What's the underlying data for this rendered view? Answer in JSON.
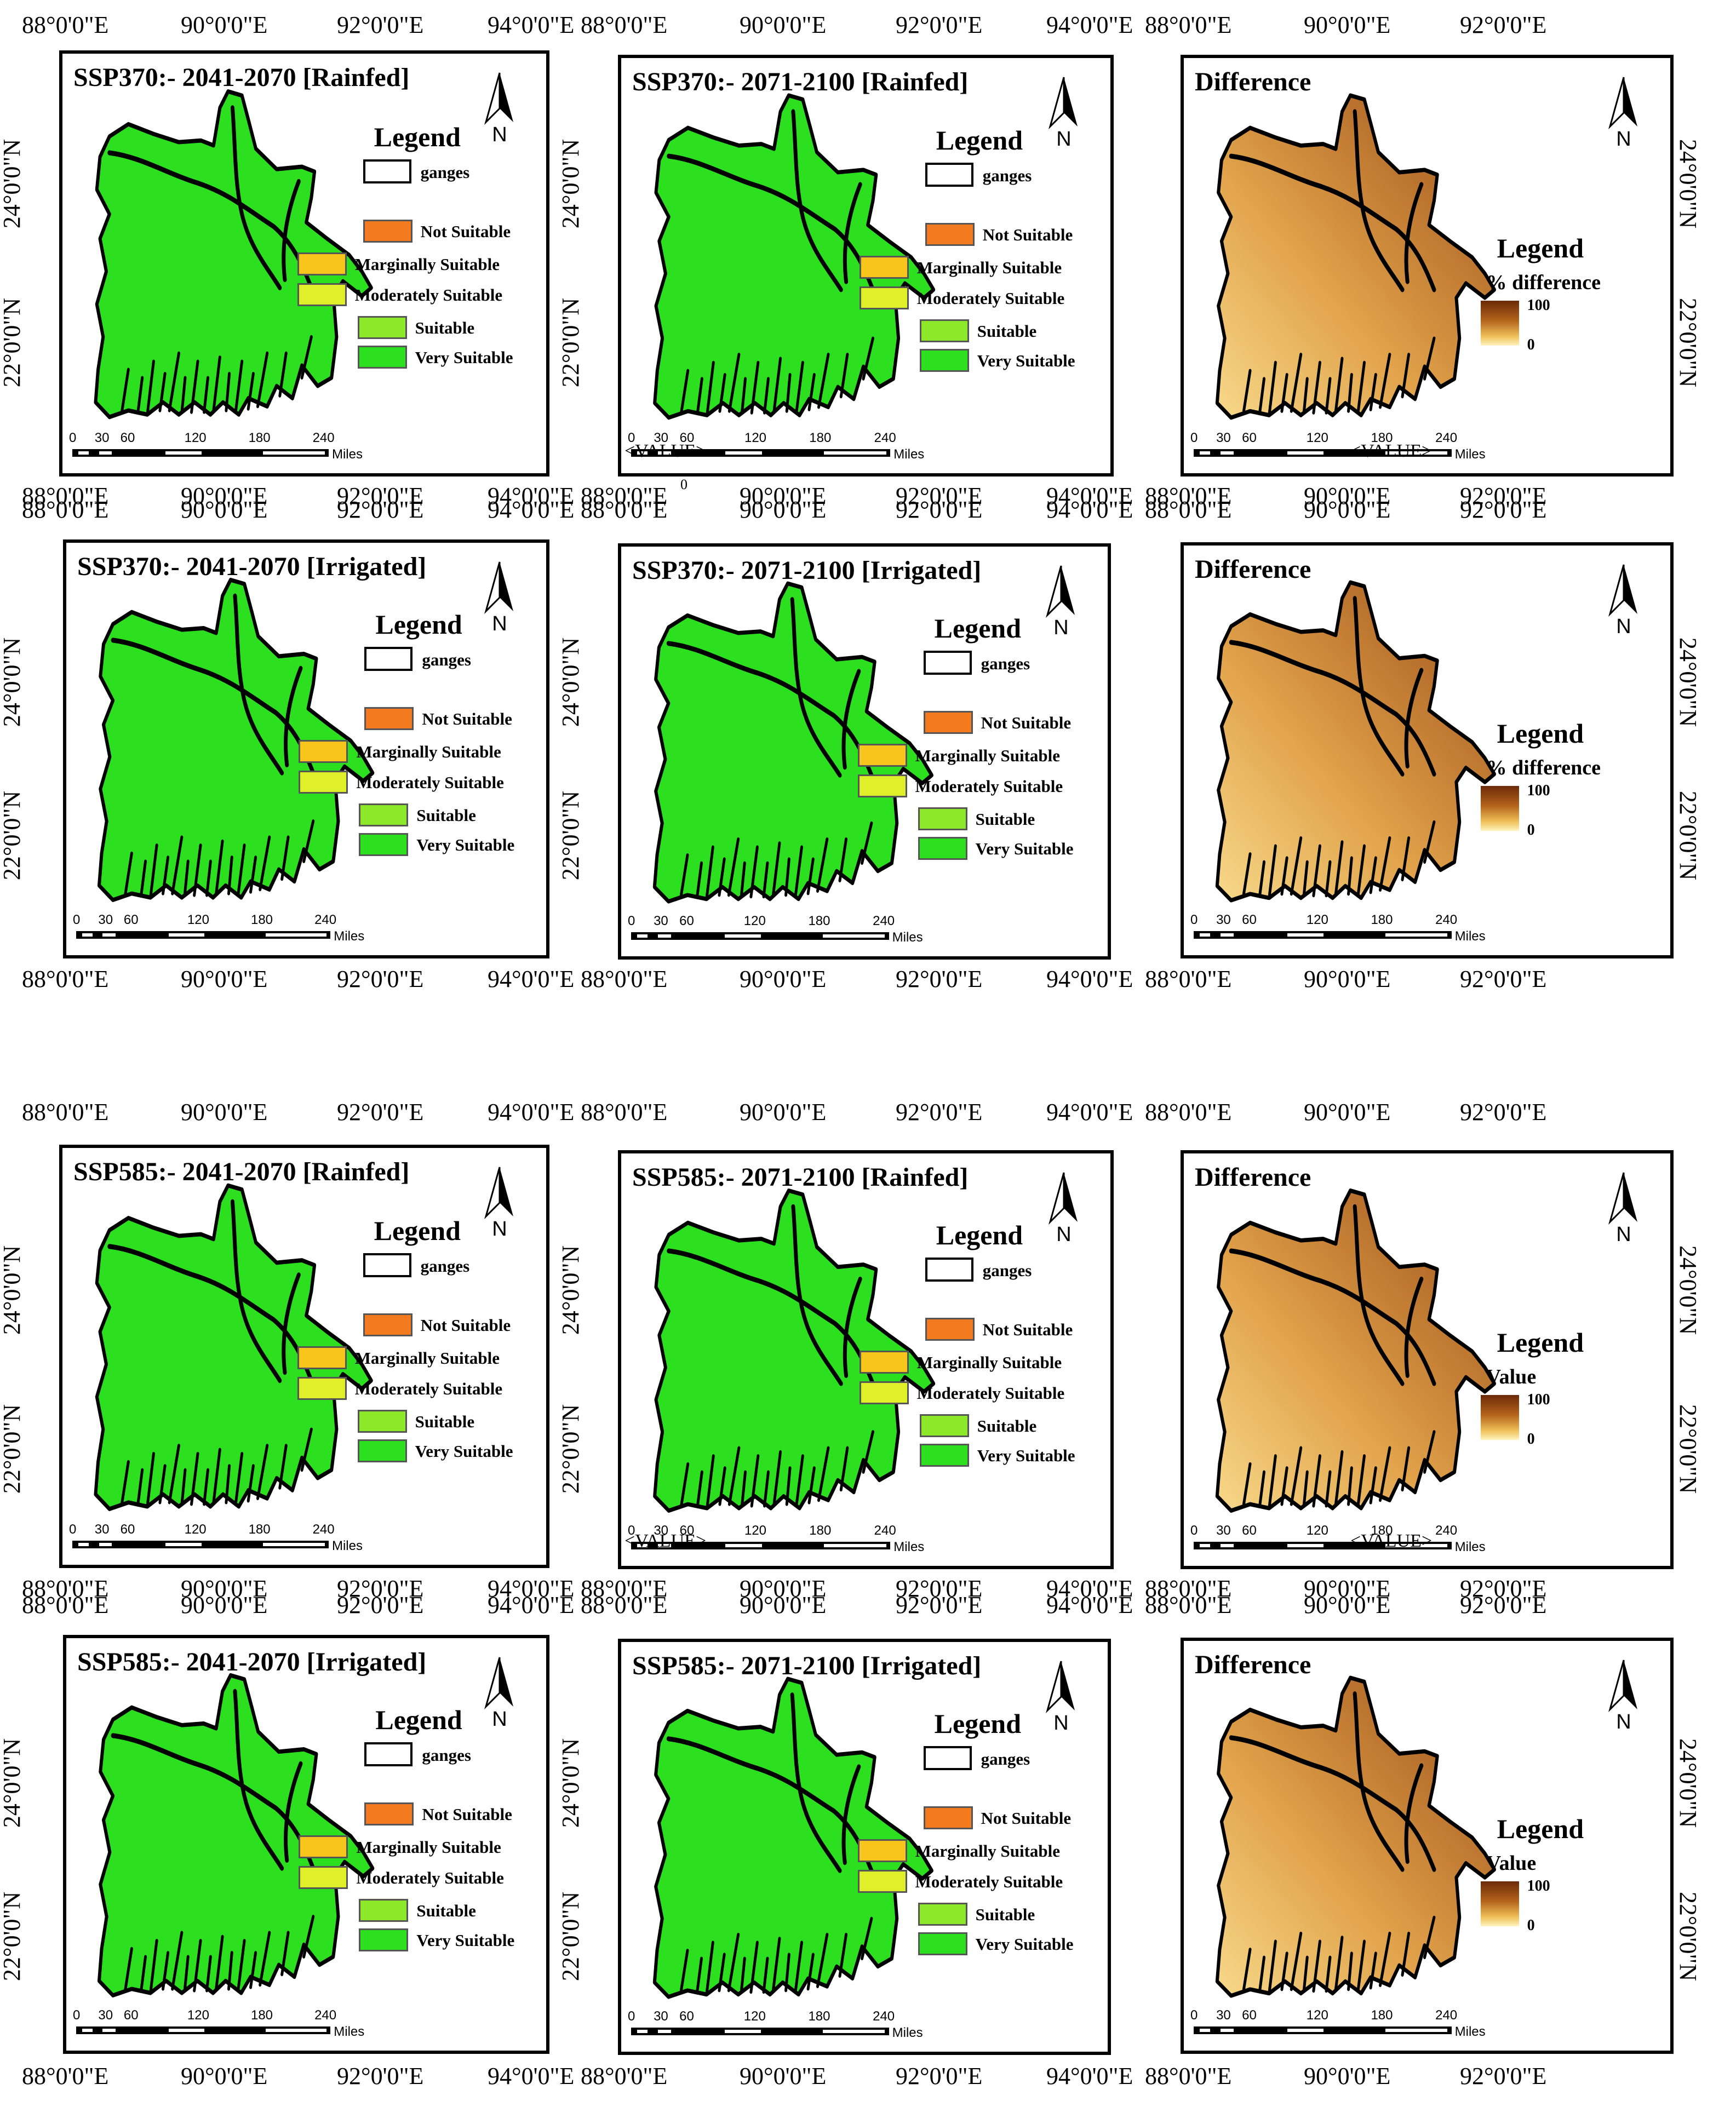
{
  "figure": {
    "lon_labels": [
      "88°0'0\"E",
      "90°0'0\"E",
      "92°0'0\"E",
      "94°0'0\"E"
    ],
    "lat_labels": [
      "24°0'0\"N",
      "22°0'0\"N"
    ],
    "north_label": "N",
    "scale_ticks": [
      "0",
      "30",
      "60",
      "120",
      "180",
      "240"
    ],
    "scale_unit": "Miles",
    "legend_title": "Legend",
    "outline_label": "ganges",
    "classes": [
      {
        "label": "Not Suitable",
        "color": "#f47a20"
      },
      {
        "label": "Marginally Suitable",
        "color": "#f7c51c"
      },
      {
        "label": "Moderately Suitable",
        "color": "#dfef2a"
      },
      {
        "label": "Suitable",
        "color": "#8ee82a"
      },
      {
        "label": "Very Suitable",
        "color": "#2cdf1f"
      }
    ],
    "gradient": {
      "max": "100",
      "min": "0",
      "high_color": "#6b2a06",
      "low_color": "#fff3c0"
    },
    "stray_text": "<VALUE>",
    "stray_zero": "0"
  },
  "panels": [
    {
      "title": "SSP370:- 2041-2070 [Rainfed]",
      "kind": "suitability"
    },
    {
      "title": "SSP370:- 2071-2100 [Rainfed]",
      "kind": "suitability"
    },
    {
      "title": "Difference",
      "kind": "difference",
      "grad_title": "% difference"
    },
    {
      "title": "SSP370:- 2041-2070 [Irrigated]",
      "kind": "suitability"
    },
    {
      "title": "SSP370:- 2071-2100 [Irrigated]",
      "kind": "suitability"
    },
    {
      "title": "Difference",
      "kind": "difference",
      "grad_title": "% difference"
    },
    {
      "title": "SSP585:- 2041-2070 [Rainfed]",
      "kind": "suitability"
    },
    {
      "title": "SSP585:- 2071-2100 [Rainfed]",
      "kind": "suitability"
    },
    {
      "title": "Difference",
      "kind": "difference",
      "grad_title": "Value"
    },
    {
      "title": "SSP585:- 2041-2070 [Irrigated]",
      "kind": "suitability"
    },
    {
      "title": "SSP585:- 2071-2100 [Irrigated]",
      "kind": "suitability"
    },
    {
      "title": "Difference",
      "kind": "difference",
      "grad_title": "Value"
    }
  ]
}
